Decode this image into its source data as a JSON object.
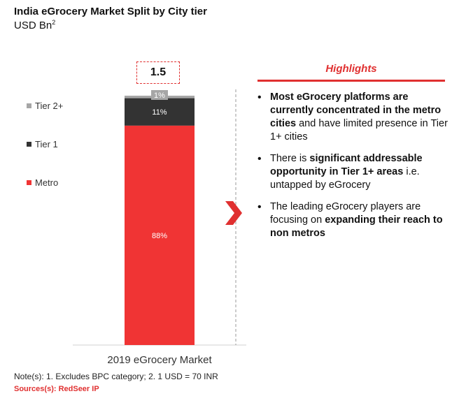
{
  "header": {
    "title": "India eGrocery Market Split by City tier",
    "subtitle": "USD Bn",
    "subtitle_sup": "2"
  },
  "chart_data": {
    "type": "bar",
    "stacked": true,
    "categories": [
      "2019 eGrocery Market"
    ],
    "total_label": "1.5",
    "series": [
      {
        "name": "Metro",
        "values": [
          88
        ],
        "label": "88%",
        "color": "#f03434"
      },
      {
        "name": "Tier 1",
        "values": [
          11
        ],
        "label": "11%",
        "color": "#333333"
      },
      {
        "name": "Tier 2+",
        "values": [
          1
        ],
        "label": "1%",
        "color": "#a6a6a6"
      }
    ],
    "ylim": [
      0,
      100
    ],
    "legend": "left"
  },
  "highlights": {
    "title": "Highlights",
    "bullets": [
      {
        "parts": [
          {
            "text": "Most eGrocery platforms are currently concentrated in the metro cities",
            "bold": true
          },
          {
            "text": " and have limited presence in Tier 1+ cities",
            "bold": false
          }
        ]
      },
      {
        "parts": [
          {
            "text": "There is ",
            "bold": false
          },
          {
            "text": "significant addressable opportunity in Tier 1+ areas",
            "bold": true
          },
          {
            "text": " i.e. untapped by eGrocery",
            "bold": false
          }
        ]
      },
      {
        "parts": [
          {
            "text": "The leading eGrocery players are focusing on ",
            "bold": false
          },
          {
            "text": "expanding their reach to non metros",
            "bold": true
          }
        ]
      }
    ]
  },
  "footer": {
    "note": "Note(s): 1. Excludes BPC category; 2. 1 USD = 70 INR",
    "source": "Sources(s): RedSeer IP"
  },
  "colors": {
    "accent": "#e03030"
  }
}
